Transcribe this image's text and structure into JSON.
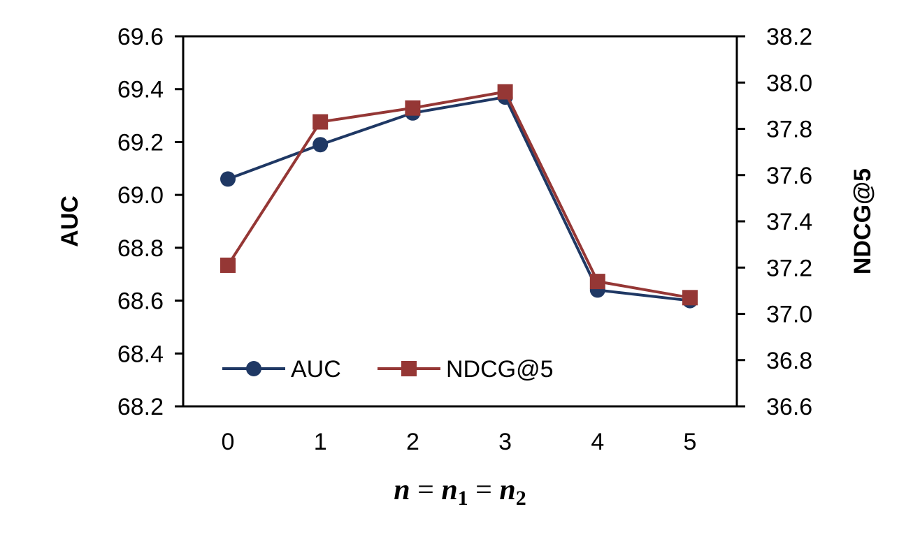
{
  "chart_data": {
    "type": "line",
    "categories": [
      "0",
      "1",
      "2",
      "3",
      "4",
      "5"
    ],
    "x": [
      0,
      1,
      2,
      3,
      4,
      5
    ],
    "xlabel": {
      "parts": [
        "n",
        " = ",
        "n",
        "1",
        " = ",
        "n",
        "2"
      ]
    },
    "ylabel": "AUC",
    "y2label": "NDCG@5",
    "ylim": [
      68.2,
      69.6
    ],
    "y2lim": [
      36.6,
      38.2
    ],
    "yticks": [
      "68.2",
      "68.4",
      "68.6",
      "68.8",
      "69.0",
      "69.2",
      "69.4",
      "69.6"
    ],
    "y2ticks": [
      "36.6",
      "36.8",
      "37.0",
      "37.2",
      "37.4",
      "37.6",
      "37.8",
      "38.0",
      "38.2"
    ],
    "series": [
      {
        "name": "AUC",
        "axis": "left",
        "marker": "circle",
        "color": "#1f3864",
        "values": [
          69.06,
          69.19,
          69.31,
          69.37,
          68.64,
          68.6
        ]
      },
      {
        "name": "NDCG@5",
        "axis": "right",
        "marker": "square",
        "color": "#953735",
        "values": [
          37.21,
          37.83,
          37.89,
          37.96,
          37.14,
          37.07
        ]
      }
    ],
    "legend_position": "bottom-left",
    "grid": false
  }
}
